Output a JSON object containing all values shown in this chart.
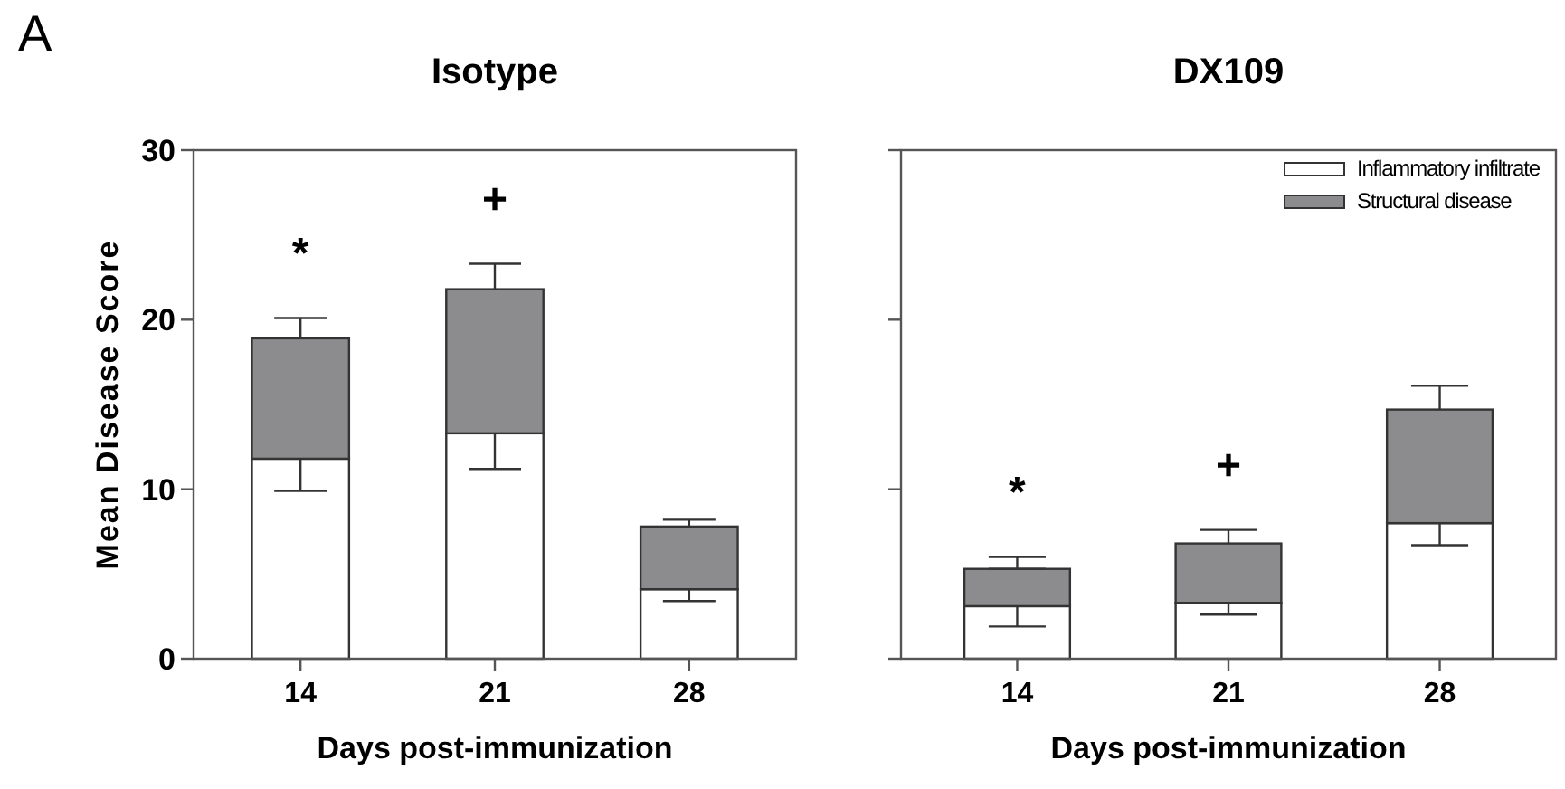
{
  "chart_data": [
    {
      "type": "bar",
      "stacked": true,
      "title": "Isotype",
      "xlabel": "Days post-immunization",
      "ylabel": "Mean Disease Score",
      "categories": [
        "14",
        "21",
        "28"
      ],
      "ylim": [
        0,
        30
      ],
      "yticks": [
        0,
        10,
        20,
        30
      ],
      "legend": false,
      "series": [
        {
          "color": "#ffffff",
          "values": [
            11.8,
            13.3,
            4.1
          ],
          "errors": [
            [
              9.9,
              11.8
            ],
            [
              11.2,
              13.3
            ],
            [
              3.4,
              4.1
            ]
          ]
        },
        {
          "color": "#8c8c8e",
          "values": [
            7.1,
            8.5,
            3.7
          ],
          "errors": [
            [
              18.9,
              20.1
            ],
            [
              21.8,
              23.3
            ],
            [
              7.8,
              8.2
            ]
          ]
        }
      ],
      "annotations": [
        "A",
        "*",
        "+"
      ]
    },
    {
      "type": "bar",
      "stacked": true,
      "title": "DX109",
      "xlabel": "Days post-immunization",
      "categories": [
        "14",
        "21",
        "28"
      ],
      "ylim": [
        0,
        30
      ],
      "yticks": [
        0,
        10,
        20,
        30
      ],
      "tick_labels": "x",
      "legend": "top right",
      "series": [
        {
          "name": "Inflammatory infiltrate",
          "color": "#ffffff",
          "values": [
            3.1,
            3.3,
            8.0
          ],
          "errors": [
            [
              1.9,
              3.1
            ],
            [
              2.6,
              3.3
            ],
            [
              6.7,
              8.0
            ]
          ]
        },
        {
          "name": "Structural disease",
          "color": "#8c8c8e",
          "values": [
            2.2,
            3.5,
            6.7
          ],
          "errors": [
            [
              5.3,
              6.0
            ],
            [
              6.8,
              7.6
            ],
            [
              14.7,
              16.1
            ]
          ]
        }
      ],
      "annotations": [
        "*",
        "+"
      ]
    }
  ]
}
